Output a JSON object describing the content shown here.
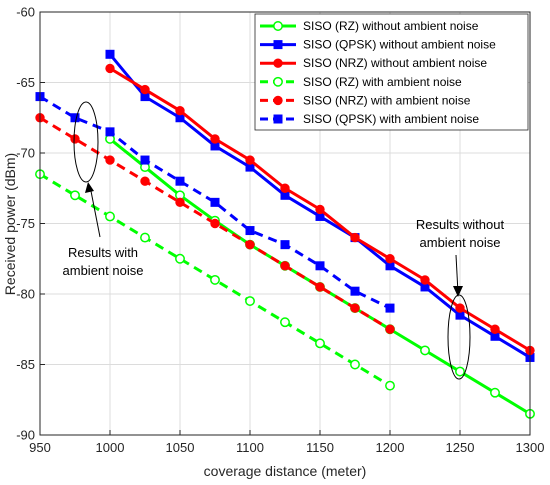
{
  "chart_data": {
    "type": "line",
    "xlabel": "coverage distance (meter)",
    "ylabel": "Received power (dBm)",
    "xlim": [
      950,
      1300
    ],
    "ylim": [
      -90,
      -60
    ],
    "xticks": [
      950,
      1000,
      1050,
      1100,
      1150,
      1200,
      1250,
      1300
    ],
    "yticks": [
      -90,
      -85,
      -80,
      -75,
      -70,
      -65,
      -60
    ],
    "grid": true,
    "legend_position": "top-right",
    "series": [
      {
        "name": "SISO (RZ) without ambient noise",
        "color": "#00ff00",
        "dash": "solid",
        "marker": "circle-open",
        "x": [
          1000,
          1025,
          1050,
          1075,
          1100,
          1125,
          1150,
          1175,
          1200,
          1225,
          1250,
          1275,
          1300
        ],
        "y": [
          -69,
          -71,
          -73,
          -74.8,
          -76.5,
          -78,
          -79.5,
          -81,
          -82.5,
          -84,
          -85.5,
          -87,
          -88.5
        ]
      },
      {
        "name": "SISO (QPSK) without ambient noise",
        "color": "#0000ff",
        "dash": "solid",
        "marker": "square-filled",
        "x": [
          1000,
          1025,
          1050,
          1075,
          1100,
          1125,
          1150,
          1175,
          1200,
          1225,
          1250,
          1275,
          1300
        ],
        "y": [
          -63,
          -66,
          -67.5,
          -69.5,
          -71,
          -73,
          -74.5,
          -76,
          -78,
          -79.5,
          -81.5,
          -83,
          -84.5
        ]
      },
      {
        "name": "SISO (NRZ) without ambient noise",
        "color": "#ff0000",
        "dash": "solid",
        "marker": "circle-filled",
        "x": [
          1000,
          1025,
          1050,
          1075,
          1100,
          1125,
          1150,
          1175,
          1200,
          1225,
          1250,
          1275,
          1300
        ],
        "y": [
          -64,
          -65.5,
          -67,
          -69,
          -70.5,
          -72.5,
          -74,
          -76,
          -77.5,
          -79,
          -81,
          -82.5,
          -84
        ]
      },
      {
        "name": "SISO (RZ) with ambient noise",
        "color": "#00ff00",
        "dash": "dashed",
        "marker": "circle-open",
        "x": [
          950,
          975,
          1000,
          1025,
          1050,
          1075,
          1100,
          1125,
          1150,
          1175,
          1200
        ],
        "y": [
          -71.5,
          -73,
          -74.5,
          -76,
          -77.5,
          -79,
          -80.5,
          -82,
          -83.5,
          -85,
          -86.5
        ]
      },
      {
        "name": "SISO (NRZ) with ambient noise",
        "color": "#ff0000",
        "dash": "dashed",
        "marker": "circle-filled",
        "x": [
          950,
          975,
          1000,
          1025,
          1050,
          1075,
          1100,
          1125,
          1150,
          1175,
          1200
        ],
        "y": [
          -67.5,
          -69,
          -70.5,
          -72,
          -73.5,
          -75,
          -76.5,
          -78,
          -79.5,
          -81,
          -82.5
        ]
      },
      {
        "name": "SISO (QPSK) with ambient noise",
        "color": "#0000ff",
        "dash": "dashed",
        "marker": "square-filled",
        "x": [
          950,
          975,
          1000,
          1025,
          1050,
          1075,
          1100,
          1125,
          1150,
          1175,
          1200
        ],
        "y": [
          -66,
          -67.5,
          -68.5,
          -70.5,
          -72,
          -73.5,
          -75.5,
          -76.5,
          -78,
          -79.8,
          -81
        ]
      }
    ],
    "annotations": [
      {
        "lines": [
          "Results with",
          "ambient noise"
        ]
      },
      {
        "lines": [
          "Results without",
          "ambient noise"
        ]
      }
    ]
  }
}
